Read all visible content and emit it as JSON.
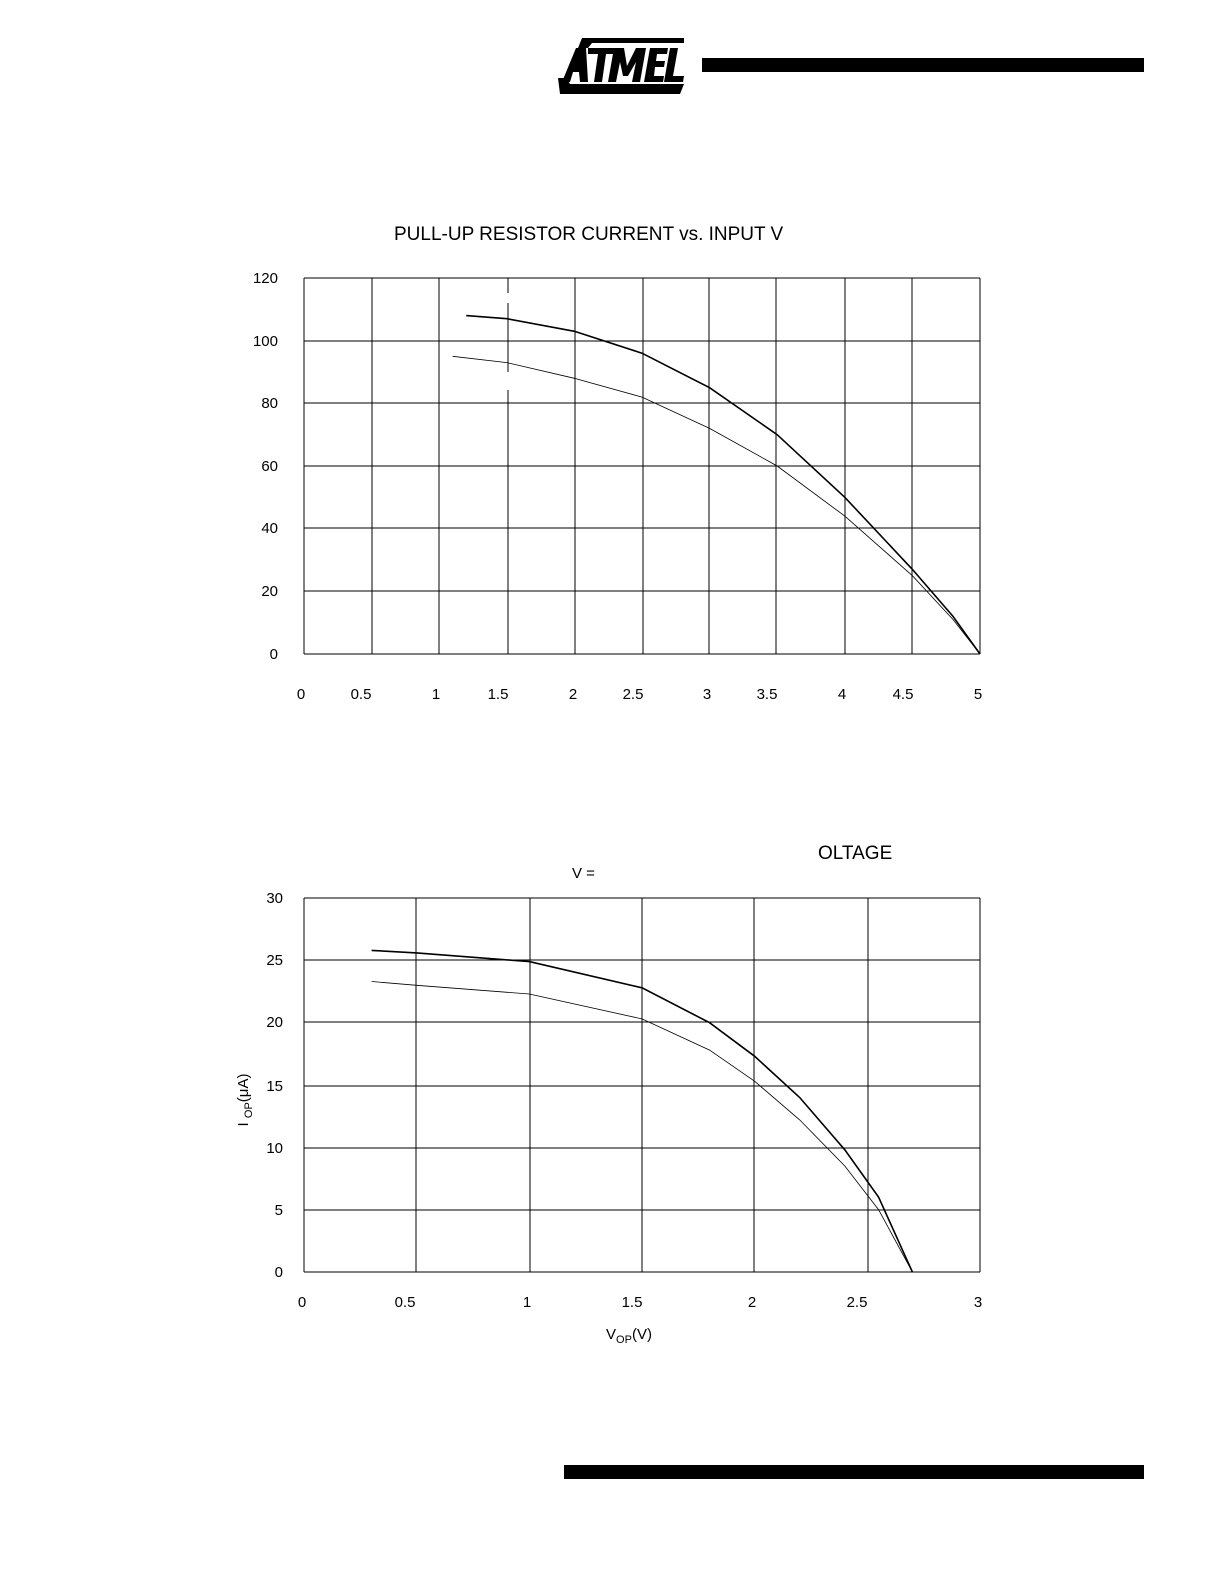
{
  "header": {
    "logo_text": "ATMEL"
  },
  "chart_data": [
    {
      "type": "line",
      "title": "PULL-UP RESISTOR CURRENT vs. INPUT V",
      "xlabel": "",
      "ylabel": "",
      "xlim": [
        0,
        5
      ],
      "ylim": [
        0,
        120
      ],
      "x_ticks": [
        "0",
        "0.5",
        "1",
        "1.5",
        "2",
        "2.5",
        "3",
        "3.5",
        "4",
        "4.5",
        "5"
      ],
      "y_ticks": [
        "0",
        "20",
        "40",
        "60",
        "80",
        "100",
        "120"
      ],
      "grid": true,
      "series": [
        {
          "x": [
            1.2,
            1.5,
            2.0,
            2.5,
            3.0,
            3.5,
            4.0,
            4.5,
            4.8,
            5.0
          ],
          "y": [
            108,
            107,
            103,
            96,
            85,
            70,
            50,
            27,
            12,
            0
          ]
        },
        {
          "x": [
            1.1,
            1.5,
            2.0,
            2.5,
            3.0,
            3.5,
            4.0,
            4.5,
            4.8,
            5.0
          ],
          "y": [
            95,
            93,
            88,
            82,
            72,
            60,
            44,
            25,
            11,
            0
          ]
        }
      ]
    },
    {
      "type": "line",
      "title": "OLTAGE",
      "subtitle": "V   =",
      "xlabel": "VOP(V)",
      "ylabel": "I OP(μA)",
      "xlim": [
        0,
        3
      ],
      "ylim": [
        0,
        30
      ],
      "x_ticks": [
        "0",
        "0.5",
        "1",
        "1.5",
        "2",
        "2.5",
        "3"
      ],
      "y_ticks": [
        "0",
        "5",
        "10",
        "15",
        "20",
        "25",
        "30"
      ],
      "grid": true,
      "series": [
        {
          "x": [
            0.3,
            0.5,
            1.0,
            1.5,
            1.8,
            2.0,
            2.2,
            2.4,
            2.55,
            2.7
          ],
          "y": [
            25.8,
            25.6,
            24.9,
            22.8,
            20.0,
            17.3,
            14.0,
            9.8,
            6.0,
            0
          ]
        },
        {
          "x": [
            0.3,
            0.5,
            1.0,
            1.5,
            1.8,
            2.0,
            2.2,
            2.4,
            2.55,
            2.7
          ],
          "y": [
            23.3,
            23.0,
            22.3,
            20.3,
            17.8,
            15.3,
            12.2,
            8.5,
            5.0,
            0
          ]
        }
      ]
    }
  ]
}
